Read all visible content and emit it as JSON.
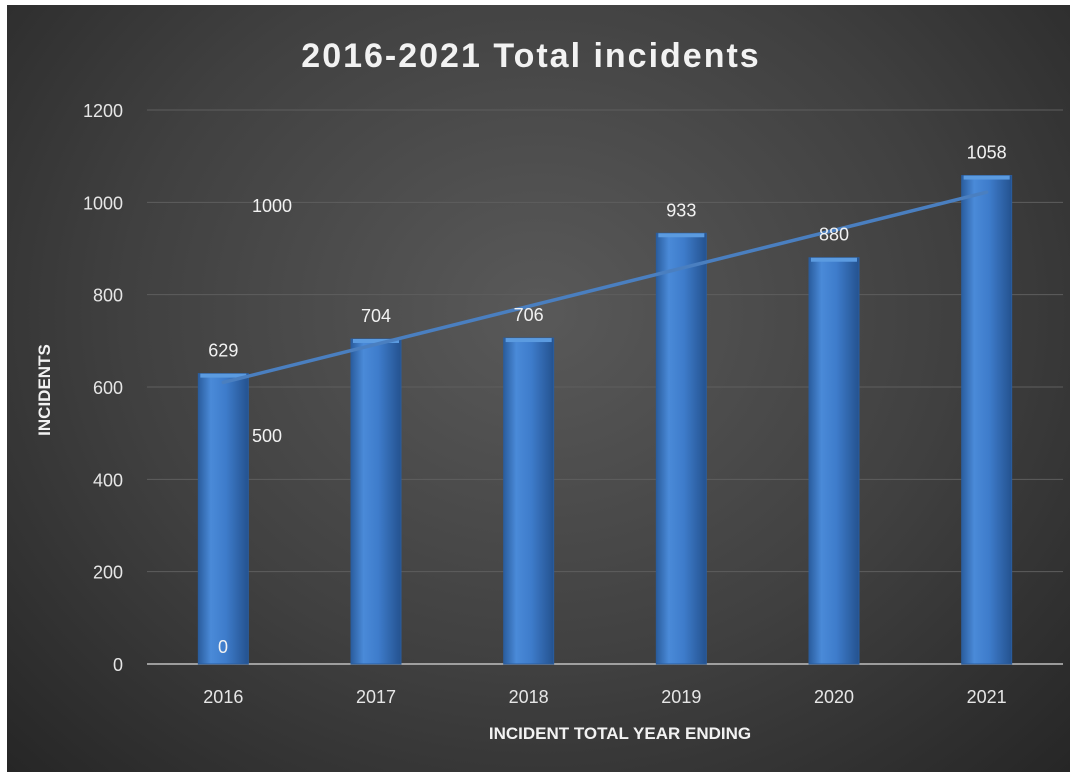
{
  "chart_data": {
    "type": "bar",
    "title": "2016-2021 Total incidents",
    "xlabel": "INCIDENT TOTAL YEAR ENDING",
    "ylabel": "INCIDENTS",
    "categories": [
      "2016",
      "2017",
      "2018",
      "2019",
      "2020",
      "2021"
    ],
    "series": [
      {
        "values": [
          629,
          704,
          706,
          933,
          880,
          1058
        ]
      }
    ],
    "trendline": {
      "type": "linear",
      "from": 610,
      "to": 1022
    },
    "ylim": [
      0,
      1200
    ],
    "yticks": [
      0,
      200,
      400,
      600,
      800,
      1000,
      1200
    ],
    "extra_labels": [
      "1000",
      "500",
      "0"
    ],
    "grid": true,
    "legend": "none",
    "colors": {
      "bar": "#3e7ccb",
      "bar_light": "#5b9be0",
      "bar_dark": "#2a5d9e",
      "trend": "#4a7fc0",
      "grid": "#5e5e5e",
      "axis": "#bfbfbf"
    }
  }
}
